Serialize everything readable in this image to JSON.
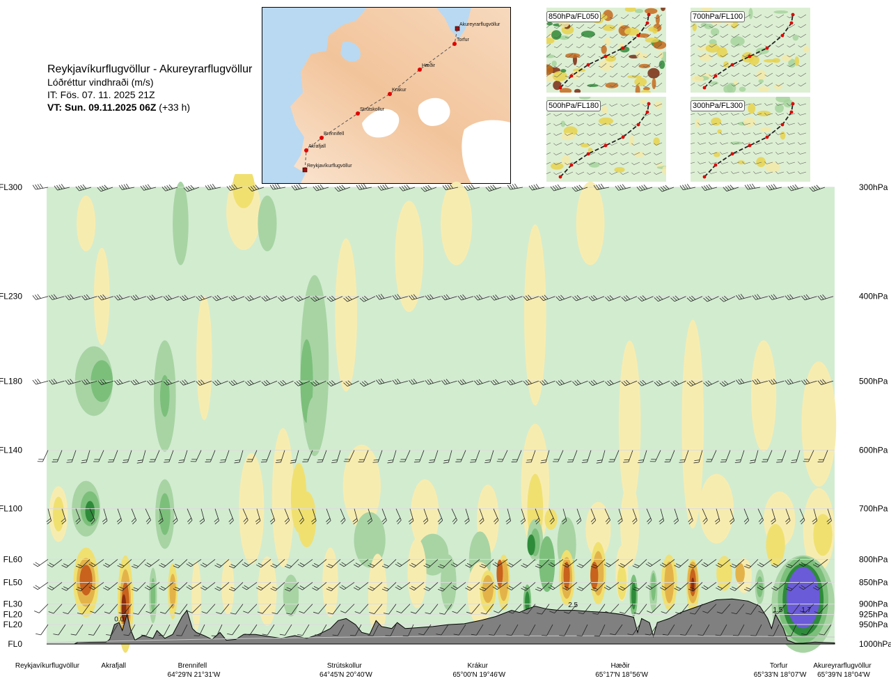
{
  "header": {
    "title": "Reykjavíkurflugvöllur - Akureyrarflugvöllur",
    "subtitle": "Lóðréttur vindhraði (m/s)",
    "init_time": "IT: Fös. 07. 11. 2025 21Z",
    "valid_time_bold": "VT: Sun. 09.11.2025 06Z",
    "valid_time_rest": " (+33 h)"
  },
  "map": {
    "points": [
      {
        "name": "Akureyrarflugvöllur"
      },
      {
        "name": "Torfur"
      },
      {
        "name": "Hæðir"
      },
      {
        "name": "Krákur"
      },
      {
        "name": "Strútskollur"
      },
      {
        "name": "Brennifell"
      },
      {
        "name": "Akrafjall"
      },
      {
        "name": "Reykjavíkurflugvöllur"
      }
    ]
  },
  "thumbnails": [
    {
      "label": "850hPa/FL050"
    },
    {
      "label": "700hPa/FL100"
    },
    {
      "label": "500hPa/FL180"
    },
    {
      "label": "300hPa/FL300"
    }
  ],
  "chart_data": {
    "type": "heatmap",
    "title": "Lóðréttur vindhraði (m/s)",
    "levels": [
      {
        "fl": "FL300",
        "hpa": "300hPa",
        "p": 300
      },
      {
        "fl": "FL230",
        "hpa": "400hPa",
        "p": 400
      },
      {
        "fl": "FL180",
        "hpa": "500hPa",
        "p": 500
      },
      {
        "fl": "FL140",
        "hpa": "600hPa",
        "p": 600
      },
      {
        "fl": "FL100",
        "hpa": "700hPa",
        "p": 700
      },
      {
        "fl": "FL60",
        "hpa": "800hPa",
        "p": 800
      },
      {
        "fl": "FL50",
        "hpa": "850hPa",
        "p": 850
      },
      {
        "fl": "FL30",
        "hpa": "900hPa",
        "p": 900
      },
      {
        "fl": "FL20",
        "hpa": "925hPa",
        "p": 925
      },
      {
        "fl": "FL20",
        "hpa": "950hPa",
        "p": 950
      },
      {
        "fl": "FL0",
        "hpa": "1000hPa",
        "p": 1000
      }
    ],
    "locations": [
      {
        "name": "Reykjavíkurflugvöllur",
        "coord": "",
        "d": 0
      },
      {
        "name": "Akrafjall",
        "coord": "",
        "d": 0.085
      },
      {
        "name": "Brennifell",
        "coord": "64°29'N 21°31'W",
        "d": 0.185
      },
      {
        "name": "Strútskollur",
        "coord": "64°45'N 20°40'W",
        "d": 0.378
      },
      {
        "name": "Krákur",
        "coord": "65°00'N 19°46'W",
        "d": 0.547
      },
      {
        "name": "Hæðir",
        "coord": "65°17'N 18°56'W",
        "d": 0.728
      },
      {
        "name": "Torfur",
        "coord": "65°33'N 18°07'W",
        "d": 0.929
      },
      {
        "name": "Akureyrarflugvöllur",
        "coord": "65°39'N 18°04'W",
        "d": 1.0
      }
    ],
    "contour_labels": [
      {
        "text": "0.0",
        "d": 0.092,
        "p": 935
      },
      {
        "text": "2.5",
        "d": 0.668,
        "p": 901
      },
      {
        "text": "1.5",
        "d": 0.928,
        "p": 912
      },
      {
        "text": "1.7",
        "d": 0.964,
        "p": 912
      }
    ],
    "color_legend": {
      "strong_sink": "#2e8b3a",
      "sink": "#7bbf7b",
      "weak_sink": "#a8d4a4",
      "neutral": "#d2ecd0",
      "zero": "#fdfdf0",
      "weak_rise": "#f7ecb0",
      "rise": "#f0e070",
      "moderate_rise": "#e3b34a",
      "strong_rise": "#c8621c",
      "very_strong_rise": "#8a2e10",
      "updraft_core": "#6a5bd8"
    },
    "terrain_color": "#808080"
  }
}
